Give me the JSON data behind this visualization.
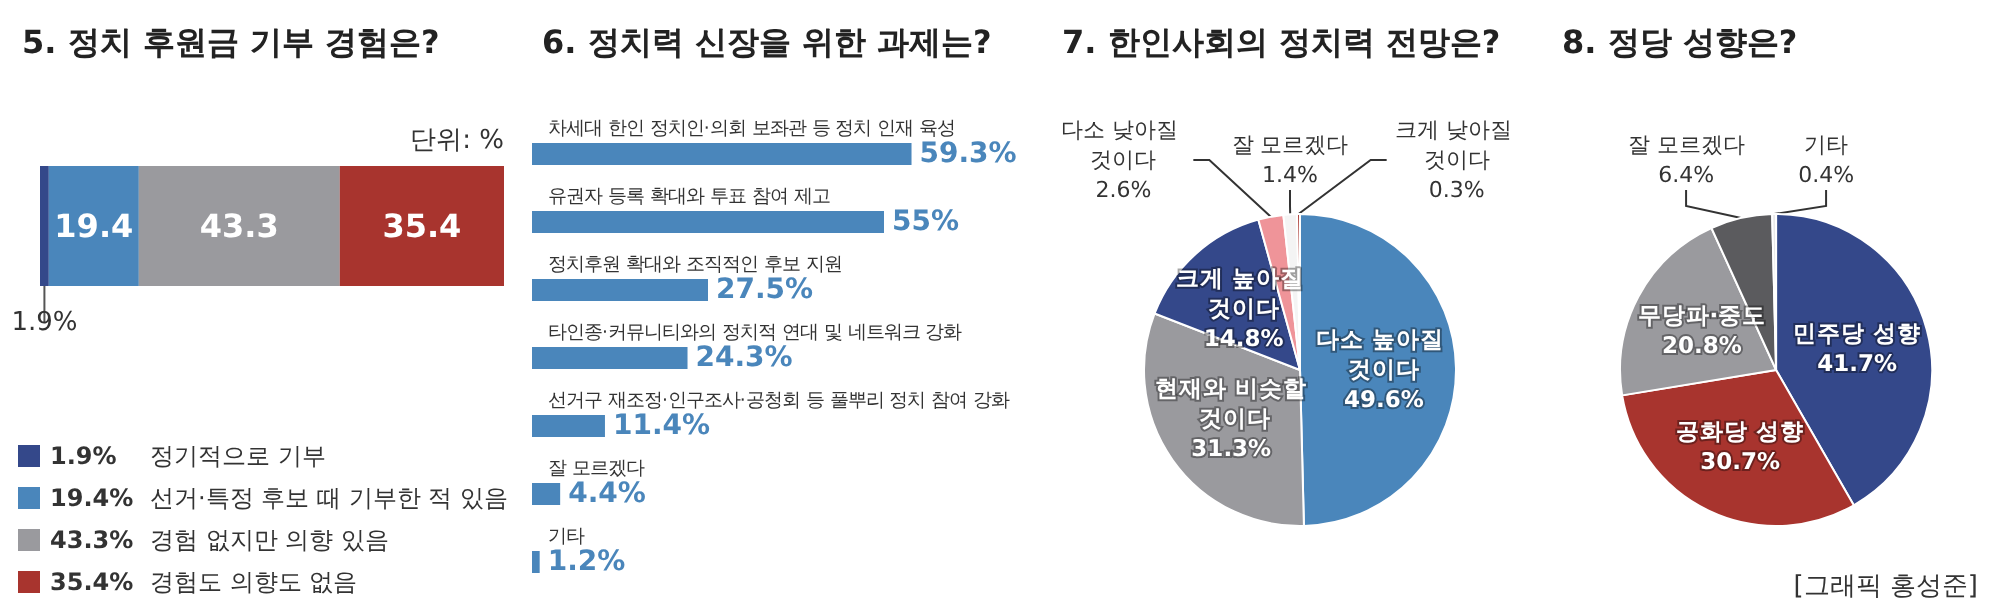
{
  "chart_data": [
    {
      "type": "bar",
      "title": "5. 정치 후원금 기부 경험은?",
      "orientation": "horizontal",
      "stacked": true,
      "categories": [
        null
      ],
      "xlim": [
        0,
        100
      ],
      "legend": "bottom left",
      "annotations": [
        "단위: %"
      ],
      "series": [
        {
          "name": "1.9% 정기적으로 기부",
          "color": "#34488a",
          "values": [
            1.9
          ],
          "value_labels": [
            "1.9%"
          ]
        },
        {
          "name": "19.4% 선거·특정 후보 때 기부한 적 있음",
          "color": "#4a86bb",
          "values": [
            19.4
          ],
          "value_labels": [
            "19.4"
          ]
        },
        {
          "name": "43.3% 경험 없지만 의향 있음",
          "color": "#9a9a9e",
          "values": [
            43.3
          ],
          "value_labels": [
            "43.3"
          ]
        },
        {
          "name": "35.4% 경험도 의향도 없음",
          "color": "#a8342e",
          "values": [
            35.4
          ],
          "value_labels": [
            "35.4"
          ]
        }
      ]
    },
    {
      "type": "bar",
      "title": "6. 정치력 신장을 위한 과제는?",
      "orientation": "horizontal",
      "color": "#4a86bb",
      "categories": [
        "차세대 한인 정치인·의회 보좌관 등 정치 인재 육성",
        "유권자 등록 확대와 투표 참여 제고",
        "정치후원 확대와 조직적인 후보 지원",
        "타인종·커뮤니티와의 정치적 연대 및 네트워크 강화",
        "선거구 재조정·인구조사·공청회 등 풀뿌리 정치 참여 강화",
        "잘 모르겠다",
        "기타"
      ],
      "values": [
        59.3,
        55,
        27.5,
        24.3,
        11.4,
        4.4,
        1.2
      ],
      "value_labels": [
        "59.3%",
        "55%",
        "27.5%",
        "24.3%",
        "11.4%",
        "4.4%",
        "1.2%"
      ]
    },
    {
      "type": "pie",
      "title": "7. 한인사회의 정치력 전망은?",
      "categories": [
        "다소 높아질 것이다",
        "현재와 비슷할 것이다",
        "크게 높아질 것이다",
        "다소 낮아질 것이다",
        "잘 모르겠다",
        "크게 낮아질 것이다"
      ],
      "values": [
        49.6,
        31.3,
        14.8,
        2.6,
        1.4,
        0.3
      ],
      "value_labels": [
        "49.6%",
        "31.3%",
        "14.8%",
        "2.6%",
        "1.4%",
        "0.3%"
      ],
      "colors": [
        "#4a86bb",
        "#9a9a9e",
        "#34488a",
        "#ef9499",
        "#f4f4f4",
        "#a8342e"
      ]
    },
    {
      "type": "pie",
      "title": "8. 정당 성향은?",
      "annotations": [
        "[그래픽 홍성준]"
      ],
      "categories": [
        "민주당 성향",
        "공화당 성향",
        "무당파·중도",
        "잘 모르겠다",
        "기타"
      ],
      "values": [
        41.7,
        30.7,
        20.8,
        6.4,
        0.4
      ],
      "value_labels": [
        "41.7%",
        "30.7%",
        "20.8%",
        "6.4%",
        "0.4%"
      ],
      "colors": [
        "#34488a",
        "#a8342e",
        "#9a9a9e",
        "#5b5b5e",
        "#e8e8e8"
      ]
    }
  ]
}
